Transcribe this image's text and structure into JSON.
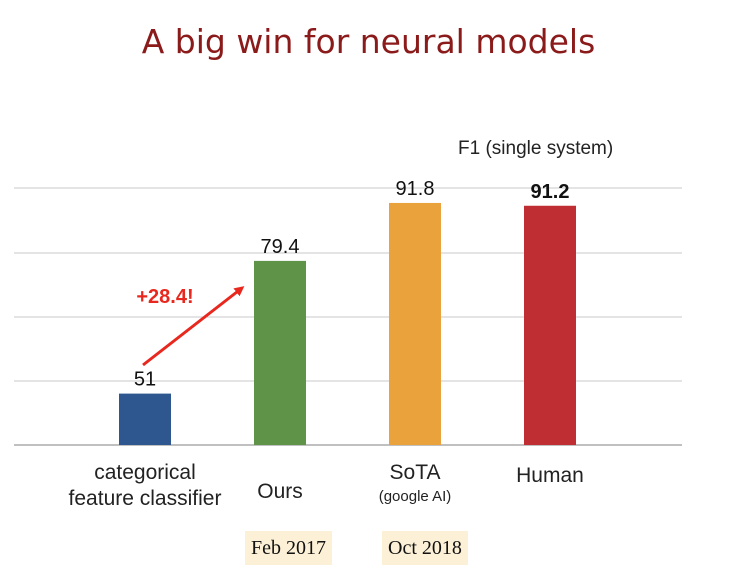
{
  "title": "A big win for neural models",
  "chart_data": {
    "type": "bar",
    "title": "A big win for neural models",
    "legend_note": "F1 (single system)",
    "categories": [
      "categorical feature classifier",
      "Ours",
      "SoTA",
      "Human"
    ],
    "category_lines": [
      [
        "categorical",
        "feature classifier"
      ],
      [
        "Ours"
      ],
      [
        "SoTA"
      ],
      [
        "Human"
      ]
    ],
    "category_sublabels": [
      "",
      "",
      "(google AI)",
      ""
    ],
    "values": [
      51,
      79.4,
      91.8,
      91.2
    ],
    "value_labels": [
      "51",
      "79.4",
      "91.8",
      "91.2"
    ],
    "bar_colors": [
      "#2f578f",
      "#5f9448",
      "#e9a23c",
      "#bf2e32"
    ],
    "ylim": [
      40,
      95
    ],
    "grid": true,
    "annotation": {
      "text": "+28.4!",
      "color": "#e8281e"
    },
    "dates": [
      "Feb 2017",
      "Oct 2018"
    ]
  }
}
